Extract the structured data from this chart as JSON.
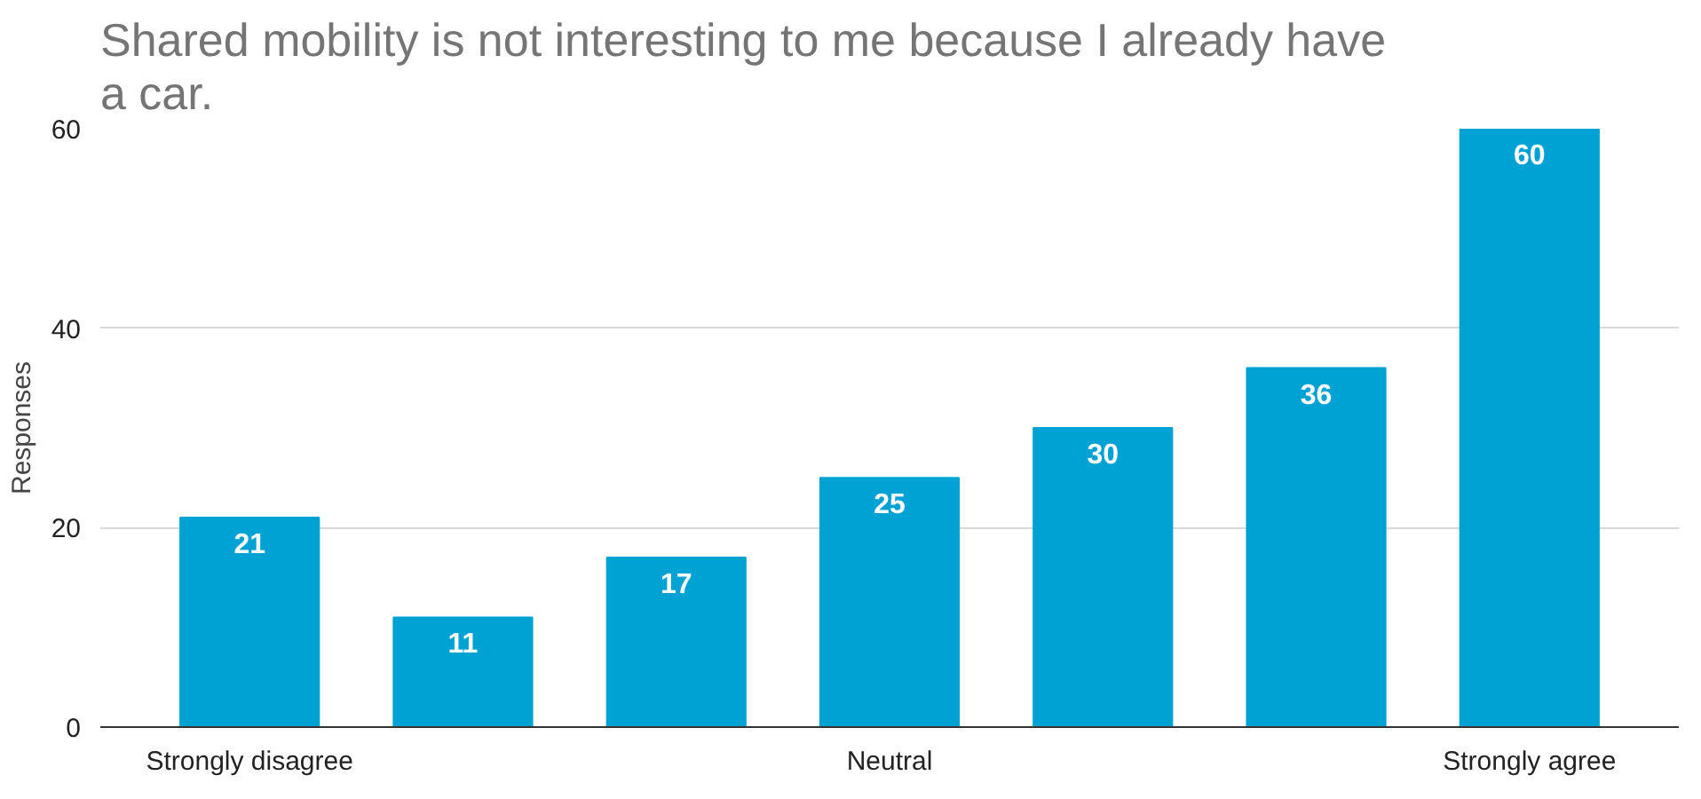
{
  "chart_data": {
    "type": "bar",
    "title": "Shared mobility is not interesting to me because I already have a car.",
    "ylabel": "Responses",
    "categories": [
      "Strongly disagree",
      null,
      null,
      "Neutral",
      null,
      null,
      "Strongly agree"
    ],
    "values": [
      21,
      11,
      17,
      25,
      30,
      36,
      60
    ],
    "color": "#00a2d3",
    "ylim": [
      0,
      60
    ],
    "yticks": [
      0,
      20,
      40,
      60
    ],
    "grid": "y",
    "data_labels": true
  }
}
